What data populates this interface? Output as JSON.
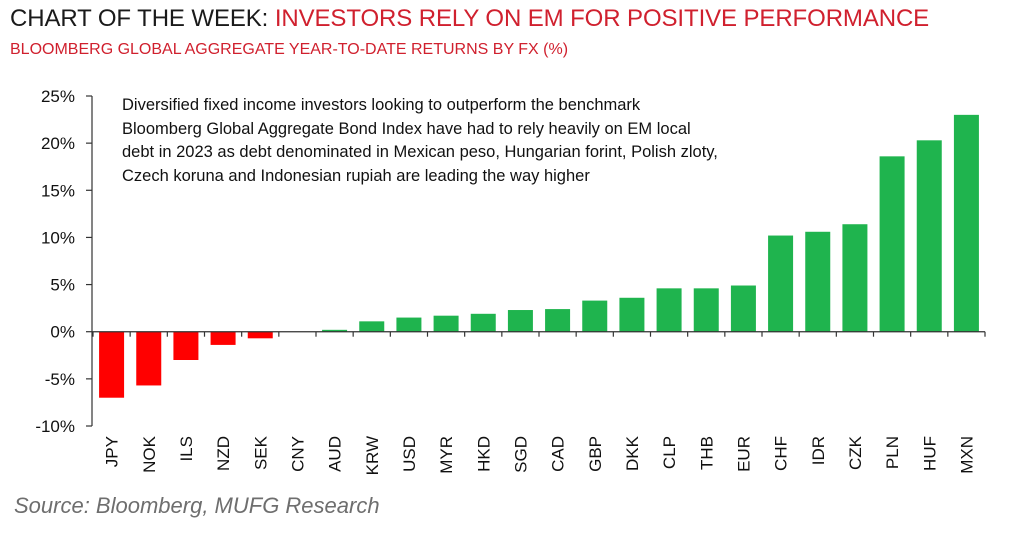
{
  "header": {
    "title_prefix": "CHART OF THE WEEK: ",
    "title_main": "INVESTORS RELY ON EM FOR POSITIVE PERFORMANCE",
    "subtitle": "BLOOMBERG GLOBAL AGGREGATE YEAR-TO-DATE RETURNS BY FX (%)"
  },
  "annotation": "Diversified fixed income investors looking to outperform the benchmark Bloomberg Global Aggregate Bond Index have had to rely heavily on EM local debt in 2023 as debt denominated in Mexican peso, Hungarian forint, Polish zloty, Czech koruna and Indonesian rupiah are leading the way higher",
  "source": "Source: Bloomberg, MUFG Research",
  "colors": {
    "positive": "#1fb44e",
    "negative": "#ff0000",
    "axis": "#333333"
  },
  "chart_data": {
    "type": "bar",
    "title": "BLOOMBERG GLOBAL AGGREGATE YEAR-TO-DATE RETURNS BY FX (%)",
    "categories": [
      "JPY",
      "NOK",
      "ILS",
      "NZD",
      "SEK",
      "CNY",
      "AUD",
      "KRW",
      "USD",
      "MYR",
      "HKD",
      "SGD",
      "CAD",
      "GBP",
      "DKK",
      "CLP",
      "THB",
      "EUR",
      "CHF",
      "IDR",
      "CZK",
      "PLN",
      "HUF",
      "MXN"
    ],
    "values": [
      -7.0,
      -5.7,
      -3.0,
      -1.4,
      -0.7,
      0.0,
      0.2,
      1.1,
      1.5,
      1.7,
      1.9,
      2.3,
      2.4,
      3.3,
      3.6,
      4.6,
      4.6,
      4.9,
      10.2,
      10.6,
      11.4,
      18.6,
      20.3,
      23.0
    ],
    "ylim": [
      -10,
      25
    ],
    "yticks": [
      -10,
      -5,
      0,
      5,
      10,
      15,
      20,
      25
    ],
    "ytick_labels": [
      "-10%",
      "-5%",
      "0%",
      "5%",
      "10%",
      "15%",
      "20%",
      "25%"
    ],
    "xlabel": "",
    "ylabel": "",
    "grid": false,
    "legend": "none"
  }
}
